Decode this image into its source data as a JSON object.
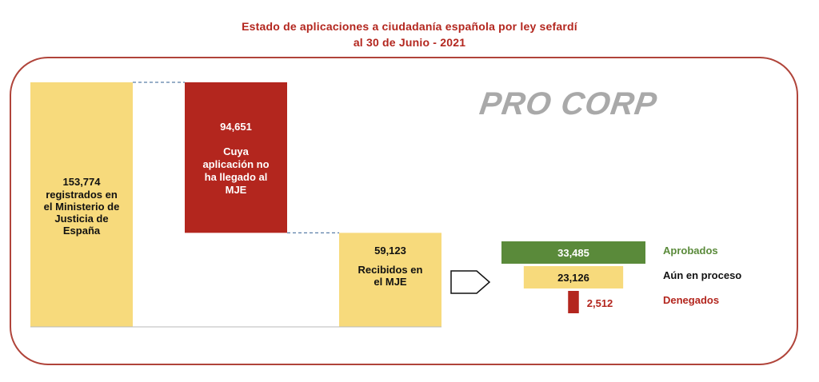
{
  "title_line1": "Estado de aplicaciones a ciudadanía española por ley sefardí",
  "title_line2": "al 30 de Junio - 2021",
  "logo_text": "PRO CORP",
  "colors": {
    "title": "#b3261e",
    "yellow": "#f7da7c",
    "red": "#b3261e",
    "green": "#5a8a3a",
    "frame": "#b0443a",
    "connector": "#5a7fa8",
    "logo": "#a9a9a9"
  },
  "chart_data": {
    "type": "waterfall",
    "ylim": [
      0,
      153774
    ],
    "bars": [
      {
        "kind": "total",
        "value": 153774,
        "value_label": "153,774",
        "label_lines": [
          "registrados en",
          "el Ministerio de",
          "Justicia de",
          "España"
        ]
      },
      {
        "kind": "decrease",
        "value": 94651,
        "value_label": "94,651",
        "label_lines": [
          "Cuya",
          "aplicación no",
          "ha llegado al",
          "MJE"
        ]
      },
      {
        "kind": "remainder",
        "value": 59123,
        "value_label": "59,123",
        "label_lines": [
          "Recibidos en",
          "el MJE"
        ]
      }
    ],
    "breakdown": [
      {
        "name": "Aprobados",
        "value": 33485,
        "value_label": "33,485"
      },
      {
        "name": "Aún en proceso",
        "value": 23126,
        "value_label": "23,126"
      },
      {
        "name": "Denegados",
        "value": 2512,
        "value_label": "2,512"
      }
    ]
  }
}
